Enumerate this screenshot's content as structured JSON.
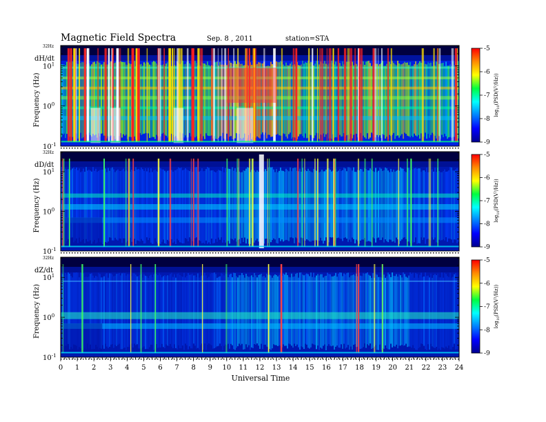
{
  "header": {
    "title": "Magnetic  Field  Spectra",
    "date": "Sep. 8  , 2011",
    "station": "station=STA"
  },
  "chart_data": {
    "type": "heatmap",
    "xlabel": "Universal Time",
    "x_ticks": [
      "0",
      "1",
      "2",
      "3",
      "4",
      "5",
      "6",
      "7",
      "8",
      "9",
      "10",
      "11",
      "12",
      "13",
      "14",
      "15",
      "16",
      "17",
      "18",
      "19",
      "20",
      "21",
      "22",
      "23",
      "24"
    ],
    "xlim": [
      0,
      24
    ],
    "y_scale": "log",
    "ylim": [
      0.1,
      32
    ],
    "ylabel": "Frequency  (Hz)",
    "y_ticks": [
      {
        "base": "10",
        "exp": "1",
        "value": 10
      },
      {
        "base": "10",
        "exp": "0",
        "value": 1
      },
      {
        "base": "10",
        "exp": "-1",
        "value": 0.1
      }
    ],
    "y_top_label": "32Hz",
    "colorbar": {
      "label_base": "log",
      "label_sub": "10",
      "label_rest": "(PSD(V²/Hz))",
      "ticks": [
        "-5",
        "-6",
        "-7",
        "-8",
        "-9"
      ],
      "range": [
        -9,
        -5
      ],
      "colors": [
        "#ff0000",
        "#ff8c00",
        "#ffff00",
        "#00ff40",
        "#00ffff",
        "#0080ff",
        "#0000ff",
        "#000090"
      ]
    },
    "panels": [
      {
        "component": "dH/dt"
      },
      {
        "component": "dD/dt"
      },
      {
        "component": "dZ/dt"
      }
    ]
  }
}
